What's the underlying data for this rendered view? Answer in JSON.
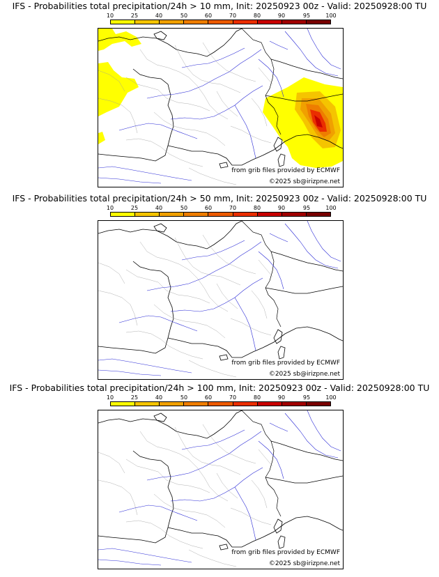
{
  "scale": {
    "ticks": [
      "10",
      "25",
      "40",
      "50",
      "60",
      "70",
      "80",
      "90",
      "95",
      "100"
    ],
    "colors": [
      "#ffff00",
      "#f5c400",
      "#f0a000",
      "#ee7d00",
      "#ec5a00",
      "#ea2e00",
      "#c80000",
      "#a00000",
      "#780000"
    ]
  },
  "panels": [
    {
      "title": "IFS - Probabilities total precipitation/24h > 10 mm, Init: 20250923 00z - Valid: 20250928:00 TU",
      "credit_source": "from grib files provided by ECMWF",
      "credit_copyright": "©2025 sb@irizpne.net"
    },
    {
      "title": "IFS - Probabilities total precipitation/24h > 50 mm, Init: 20250923 00z - Valid: 20250928:00 TU",
      "credit_source": "from grib files provided by ECMWF",
      "credit_copyright": "©2025 sb@irizpne.net"
    },
    {
      "title": "IFS - Probabilities total precipitation/24h > 100 mm, Init: 20250923 00z - Valid: 20250928:00 TU",
      "credit_source": "from grib files provided by ECMWF",
      "credit_copyright": "©2025 sb@irizpne.net"
    }
  ]
}
